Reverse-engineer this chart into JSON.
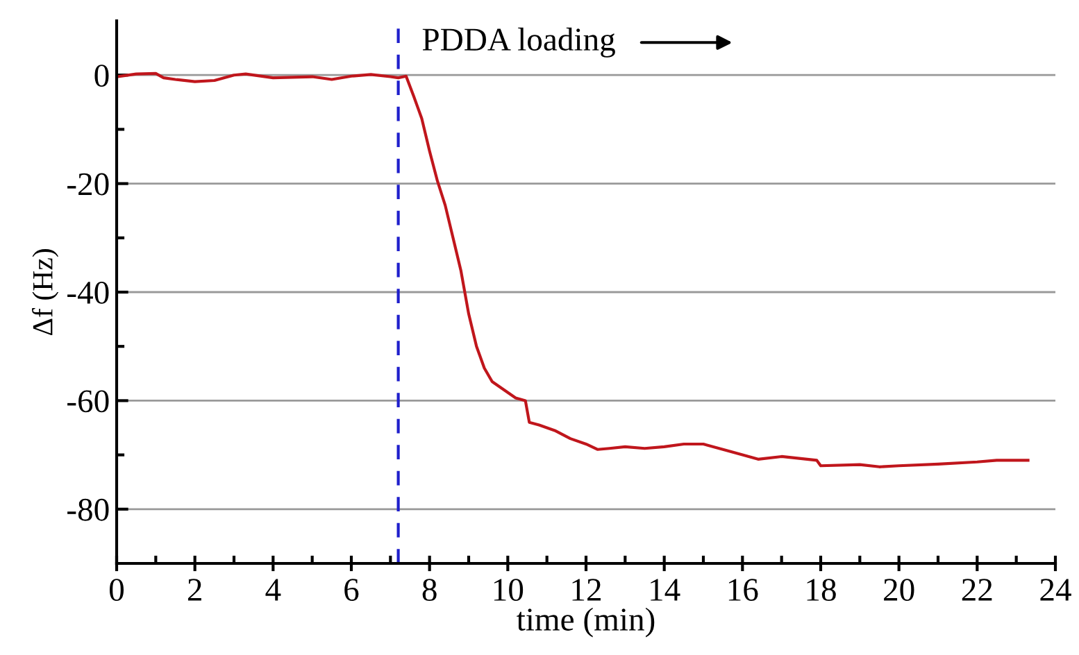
{
  "chart_data": {
    "type": "line",
    "xlabel": "time (min)",
    "ylabel": "Δf (Hz)",
    "xlim": [
      0,
      24
    ],
    "ylim": [
      -90,
      10
    ],
    "xticks": [
      0,
      {
        "value": 1,
        "label": null
      },
      2,
      {
        "value": 3,
        "label": null
      },
      4,
      {
        "value": 5,
        "label": null
      },
      6,
      {
        "value": 7,
        "label": null
      },
      8,
      {
        "value": 9,
        "label": null
      },
      10,
      {
        "value": 11,
        "label": null
      },
      12,
      {
        "value": 13,
        "label": null
      },
      14,
      {
        "value": 15,
        "label": null
      },
      16,
      {
        "value": 17,
        "label": null
      },
      18,
      {
        "value": 19,
        "label": null
      },
      20,
      {
        "value": 21,
        "label": null
      },
      22,
      {
        "value": 23,
        "label": null
      },
      24
    ],
    "yticks": [
      -80,
      {
        "value": -70,
        "label": null
      },
      -60,
      {
        "value": -50,
        "label": null
      },
      -40,
      {
        "value": -30,
        "label": null
      },
      -20,
      {
        "value": -10,
        "label": null
      },
      0
    ],
    "grid": "y",
    "marker": "none",
    "line_style": "solid",
    "ref_lines": [
      {
        "axis": "x",
        "value": 7.2,
        "label": null,
        "color": "#1f1fcc",
        "line_style": "dashed"
      }
    ],
    "annotations": [
      "PDDA loading"
    ],
    "series": [
      {
        "color": "#c0161c",
        "x": [
          0,
          0.5,
          1,
          1.2,
          1.5,
          2,
          2.5,
          3,
          3.3,
          4,
          5,
          5.5,
          6,
          6.5,
          7,
          7.2,
          7.4,
          7.6,
          7.7,
          7.8,
          8.0,
          8.2,
          8.4,
          8.6,
          8.8,
          9.0,
          9.2,
          9.4,
          9.6,
          9.9,
          10.2,
          10.45,
          10.55,
          10.8,
          11.2,
          11.6,
          12,
          12.3,
          12.6,
          13,
          13.5,
          14,
          14.5,
          15,
          15.5,
          16,
          16.4,
          17,
          17.9,
          18,
          19,
          19.5,
          20,
          21,
          22,
          22.5,
          23.3
        ],
        "values": [
          -0.3,
          0.2,
          0.3,
          -0.5,
          -0.8,
          -1.2,
          -1.0,
          0,
          0.2,
          -0.5,
          -0.3,
          -0.8,
          -0.2,
          0.1,
          -0.3,
          -0.5,
          -0.2,
          -4,
          -6,
          -8,
          -14,
          -19.5,
          -24,
          -30,
          -36,
          -44,
          -50,
          -54,
          -56.5,
          -58,
          -59.5,
          -60,
          -64,
          -64.5,
          -65.5,
          -67,
          -68,
          -69,
          -68.8,
          -68.5,
          -68.8,
          -68.5,
          -68,
          -68,
          -69,
          -70,
          -70.8,
          -70.3,
          -71,
          -72,
          -71.8,
          -72.2,
          -72,
          -71.7,
          -71.3,
          -71,
          -71
        ]
      }
    ]
  }
}
